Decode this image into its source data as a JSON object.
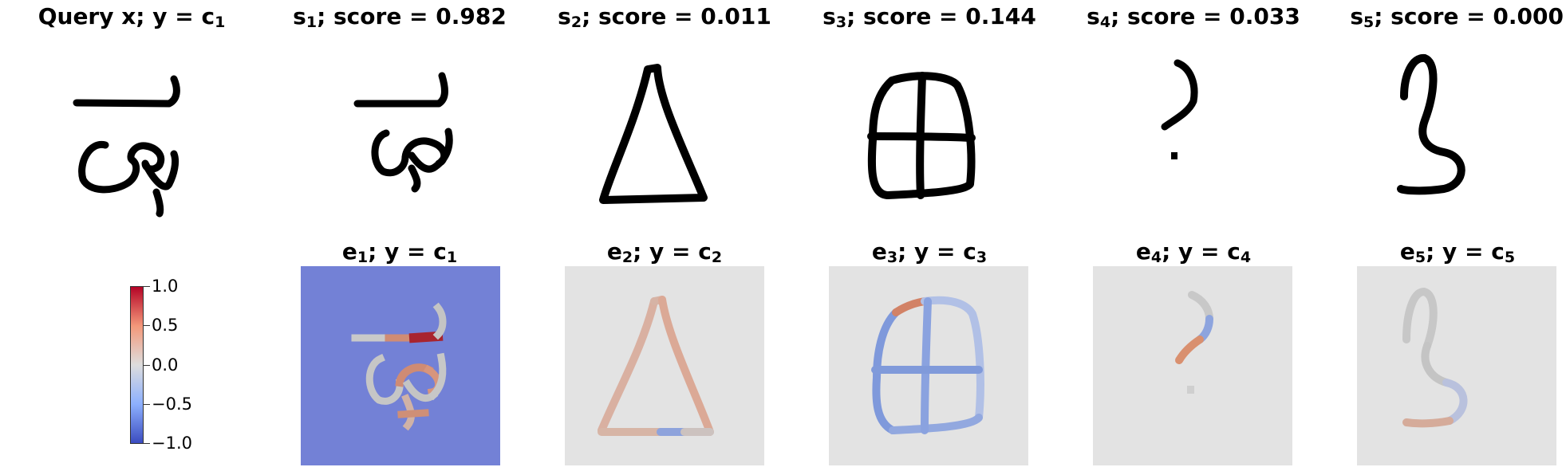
{
  "titles": {
    "query": {
      "main": "Query x; y = c",
      "sub": "1"
    },
    "s1": {
      "pre": "s",
      "sub": "1",
      "post": "; score = 0.982"
    },
    "s2": {
      "pre": "s",
      "sub": "2",
      "post": "; score = 0.011"
    },
    "s3": {
      "pre": "s",
      "sub": "3",
      "post": "; score = 0.144"
    },
    "s4": {
      "pre": "s",
      "sub": "4",
      "post": "; score = 0.033"
    },
    "s5": {
      "pre": "s",
      "sub": "5",
      "post": "; score = 0.000"
    },
    "e1": {
      "pre": "e",
      "sub": "1",
      "mid": "; y = c",
      "sub2": "1"
    },
    "e2": {
      "pre": "e",
      "sub": "2",
      "mid": "; y = c",
      "sub2": "2"
    },
    "e3": {
      "pre": "e",
      "sub": "3",
      "mid": "; y = c",
      "sub2": "3"
    },
    "e4": {
      "pre": "e",
      "sub": "4",
      "mid": "; y = c",
      "sub2": "4"
    },
    "e5": {
      "pre": "e",
      "sub": "5",
      "mid": "; y = c",
      "sub2": "5"
    }
  },
  "colorbar": {
    "ticks": [
      "1.0",
      "0.5",
      "0.0",
      "−0.5",
      "−1.0"
    ],
    "colors": {
      "low": "#3b4cc0",
      "mid": "#dddddd",
      "high": "#b40426"
    }
  },
  "scores": [
    0.982,
    0.011,
    0.144,
    0.033,
    0.0
  ]
}
